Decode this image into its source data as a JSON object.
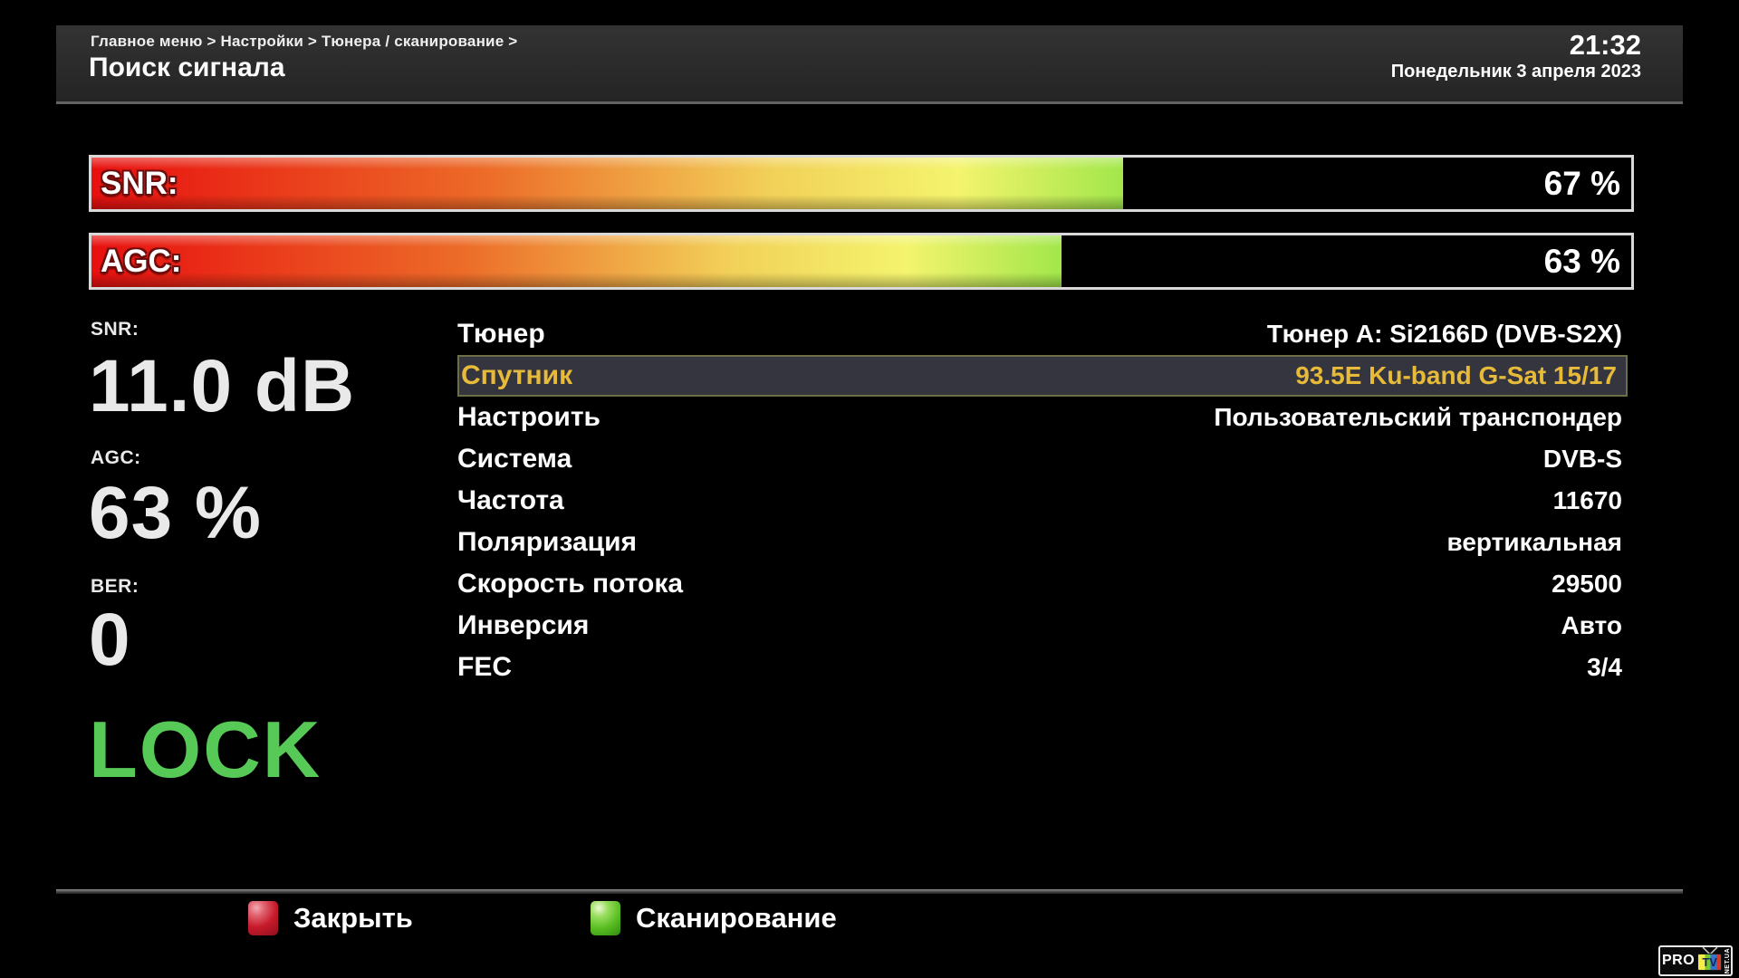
{
  "header": {
    "breadcrumb": "Главное меню > Настройки > Тюнера / сканирование >",
    "title": "Поиск сигнала",
    "time": "21:32",
    "date": "Понедельник  3 апреля 2023"
  },
  "signal_bars": [
    {
      "label": "SNR:",
      "percent": 67,
      "value_text": "67 %"
    },
    {
      "label": "AGC:",
      "percent": 63,
      "value_text": "63 %"
    }
  ],
  "metrics": [
    {
      "label": "SNR:",
      "value": "11.0 dB"
    },
    {
      "label": "AGC:",
      "value": "63 %"
    },
    {
      "label": "BER:",
      "value": "0"
    }
  ],
  "lock_status": "LOCK",
  "menu": {
    "rows": [
      {
        "label": "Тюнер",
        "value": "Тюнер A: Si2166D (DVB-S2X)",
        "selected": false
      },
      {
        "label": "Спутник",
        "value": "93.5E Ku-band G-Sat 15/17",
        "selected": true
      },
      {
        "label": "Настроить",
        "value": "Пользовательский транспондер",
        "selected": false
      },
      {
        "label": "Система",
        "value": "DVB-S",
        "selected": false
      },
      {
        "label": "Частота",
        "value": "11670",
        "selected": false
      },
      {
        "label": "Поляризация",
        "value": "вертикальная",
        "selected": false
      },
      {
        "label": "Скорость потока",
        "value": "29500",
        "selected": false
      },
      {
        "label": "Инверсия",
        "value": "Авто",
        "selected": false
      },
      {
        "label": "FEC",
        "value": "3/4",
        "selected": false
      }
    ]
  },
  "footer": {
    "buttons": [
      {
        "key": "red",
        "label": "Закрыть",
        "color": "#c81a2b"
      },
      {
        "key": "green",
        "label": "Сканирование",
        "color": "#58bd20"
      }
    ]
  },
  "logo": {
    "pro": "PRO",
    "tv": "TV",
    "net": "NET.UA"
  },
  "colors": {
    "lock_green": "#57c957",
    "highlight_text_gold": "#e7ba39",
    "highlight_row_bg": "#35353f",
    "highlight_row_border": "#6e6e46",
    "bar_gradient": [
      "#e80f0f",
      "#ec6b28",
      "#f2d159",
      "#f4f46e",
      "#a2e74b"
    ],
    "bar_border": "#d9d9d9",
    "header_bg": "#2a2a2a"
  }
}
